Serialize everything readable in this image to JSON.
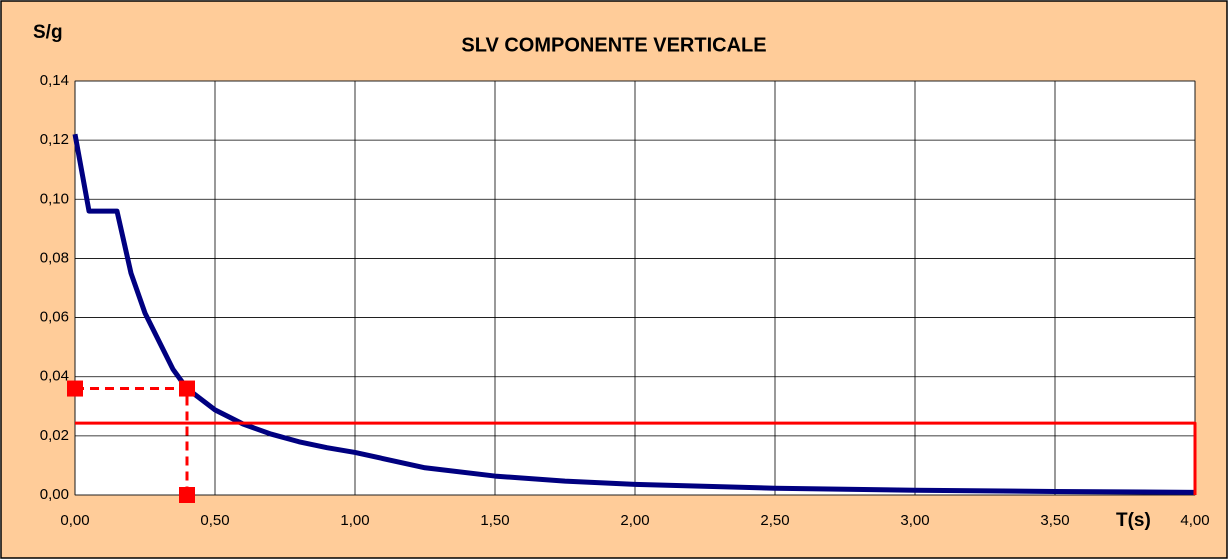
{
  "chart_data": {
    "type": "line",
    "title": "SLV COMPONENTE VERTICALE",
    "ylabel": "S/g",
    "xlabel": "T(s)",
    "xlim": [
      0,
      4
    ],
    "ylim": [
      0,
      0.14
    ],
    "xticks": [
      {
        "value": 0,
        "label": "0,00"
      },
      {
        "value": 0.5,
        "label": "0,50"
      },
      {
        "value": 1,
        "label": "1,00"
      },
      {
        "value": 1.5,
        "label": "1,50"
      },
      {
        "value": 2,
        "label": "2,00"
      },
      {
        "value": 2.5,
        "label": "2,50"
      },
      {
        "value": 3,
        "label": "3,00"
      },
      {
        "value": 3.5,
        "label": "3,50"
      },
      {
        "value": 4,
        "label": "4,00"
      }
    ],
    "yticks": [
      {
        "value": 0,
        "label": "0,00"
      },
      {
        "value": 0.02,
        "label": "0,02"
      },
      {
        "value": 0.04,
        "label": "0,04"
      },
      {
        "value": 0.06,
        "label": "0,06"
      },
      {
        "value": 0.08,
        "label": "0,08"
      },
      {
        "value": 0.1,
        "label": "0,10"
      },
      {
        "value": 0.12,
        "label": "0,12"
      },
      {
        "value": 0.14,
        "label": "0,14"
      }
    ],
    "grid": true,
    "series": [
      {
        "color": "#000080",
        "dashed": false,
        "markers": false,
        "x": [
          0,
          0.05,
          0.15,
          0.2,
          0.25,
          0.3,
          0.35,
          0.4,
          0.5,
          0.6,
          0.7,
          0.8,
          0.9,
          1.0,
          1.25,
          1.5,
          1.75,
          2.0,
          2.5,
          3.0,
          3.5,
          4.0
        ],
        "values": [
          0.122,
          0.096,
          0.096,
          0.075,
          0.0615,
          0.052,
          0.0425,
          0.036,
          0.0288,
          0.024,
          0.0206,
          0.018,
          0.016,
          0.0144,
          0.0092,
          0.0064,
          0.0047,
          0.0036,
          0.0023,
          0.0016,
          0.0012,
          0.0009
        ]
      },
      {
        "color": "#ff0000",
        "dashed": false,
        "markers": false,
        "x": [
          0,
          4,
          4
        ],
        "values": [
          0.0243,
          0.0243,
          0
        ]
      },
      {
        "color": "#ff0000",
        "dashed": true,
        "markers": true,
        "x": [
          0,
          0.4,
          0.4
        ],
        "values": [
          0.036,
          0.036,
          0
        ]
      }
    ]
  }
}
